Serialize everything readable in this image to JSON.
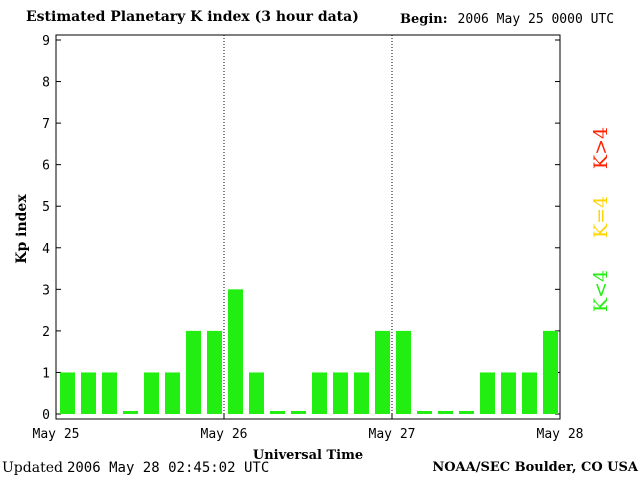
{
  "header": {
    "title": "Estimated Planetary K index (3 hour data)",
    "begin_label": "Begin:",
    "begin_value": "2006 May 25 0000 UTC"
  },
  "footer": {
    "updated_label": "Updated",
    "updated_value": "2006 May 28 02:45:02 UTC",
    "source": "NOAA/SEC Boulder, CO USA"
  },
  "legend": {
    "items": [
      {
        "label": "K>4",
        "color": "#ff2200"
      },
      {
        "label": "K=4",
        "color": "#ffd400"
      },
      {
        "label": "K<4",
        "color": "#22ee11"
      }
    ]
  },
  "chart_data": {
    "type": "bar",
    "title": "Estimated Planetary K index (3 hour data)",
    "xlabel": "Universal Time",
    "ylabel": "Kp index",
    "ylim": [
      0,
      9
    ],
    "yticks": [
      "0",
      "1",
      "2",
      "3",
      "4",
      "5",
      "6",
      "7",
      "8",
      "9"
    ],
    "xticks": [
      "May 25",
      "May 26",
      "May 27",
      "May 28"
    ],
    "day_separators": [
      "May 26",
      "May 27"
    ],
    "bar_color": "#22ee11",
    "series": [
      {
        "values": [
          1,
          1,
          1,
          0.05,
          1,
          1,
          2,
          2,
          3,
          1,
          0.05,
          0.05,
          1,
          1,
          1,
          2,
          2,
          0.05,
          0.05,
          0.05,
          1,
          1,
          1,
          2
        ]
      }
    ]
  }
}
